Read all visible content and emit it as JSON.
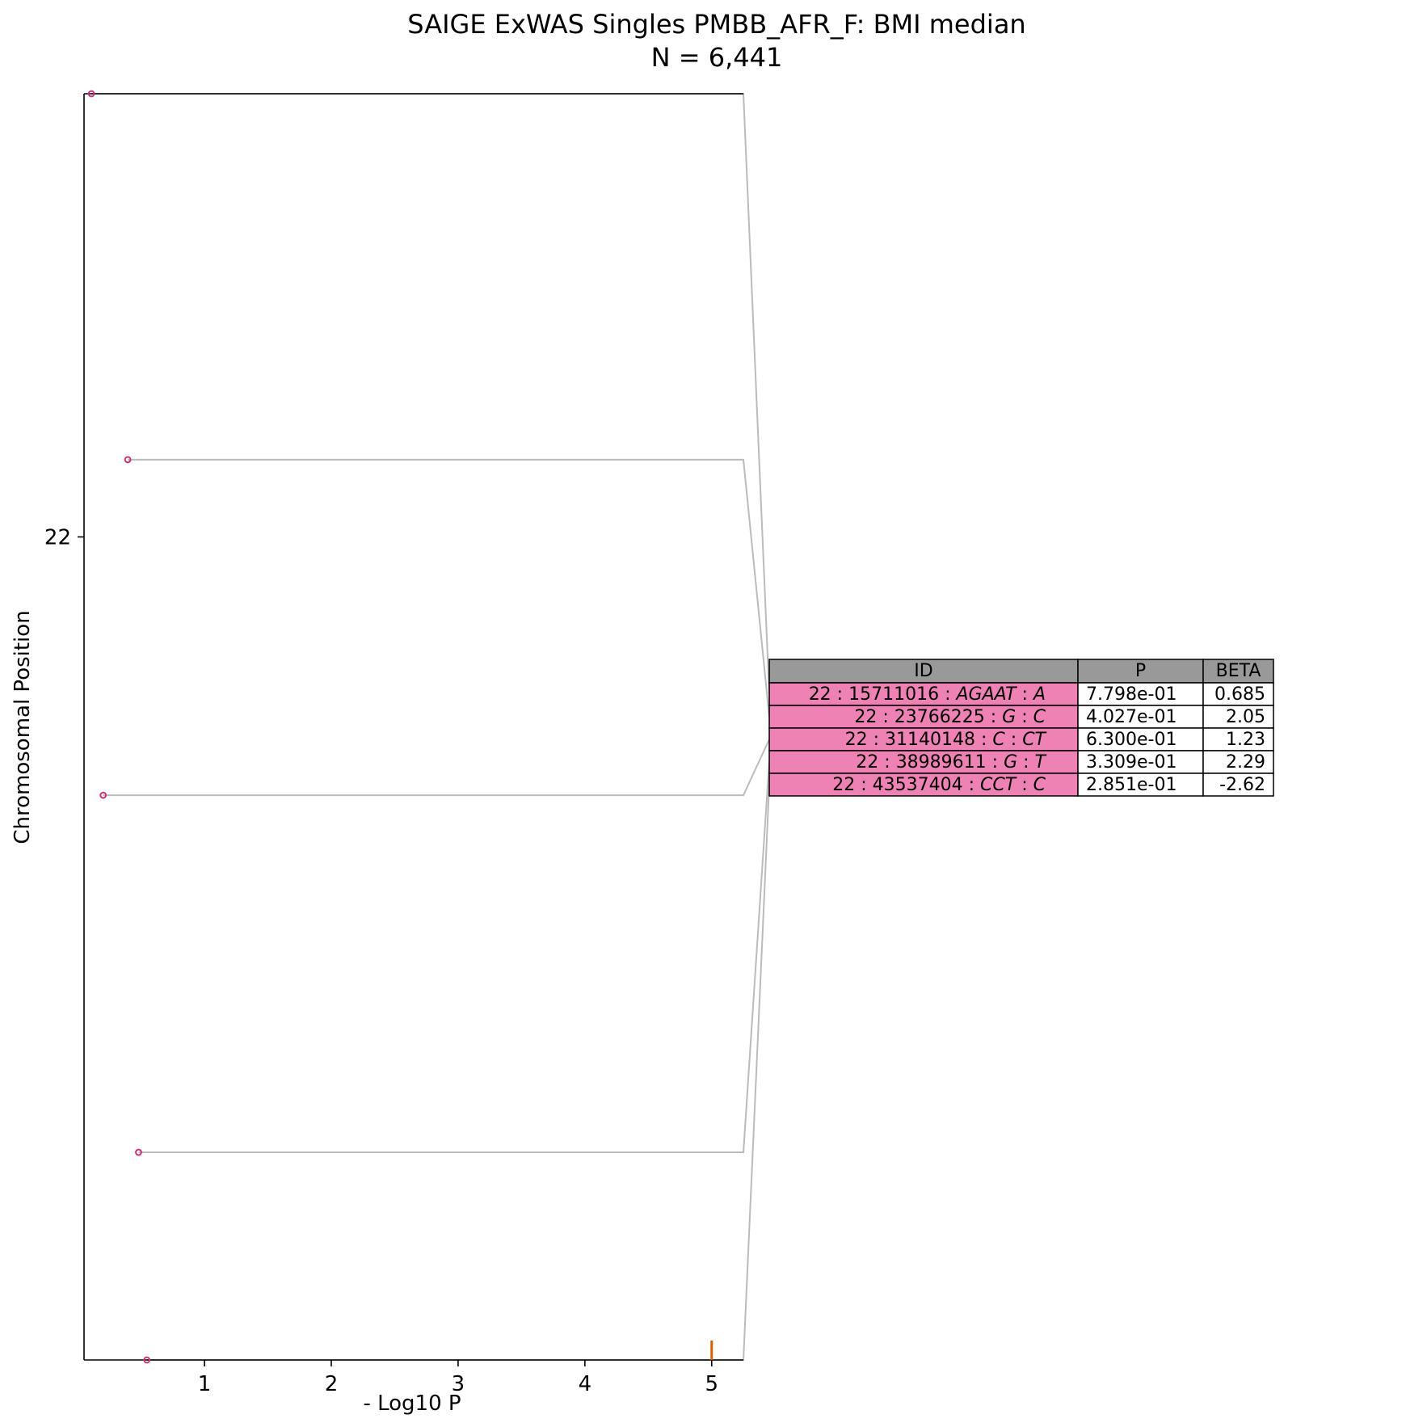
{
  "chart_data": {
    "type": "scatter",
    "title": "SAIGE ExWAS Singles PMBB_AFR_F: BMI median",
    "subtitle": "N = 6,441",
    "xlabel": "- Log10 P",
    "ylabel": "Chromosomal Position",
    "xlim": [
      0.05,
      5.25
    ],
    "x_ticks": [
      1,
      2,
      3,
      4,
      5
    ],
    "y_ticks": [
      {
        "label": "22",
        "frac": 0.35
      }
    ],
    "grid": false,
    "legend": "none",
    "threshold": {
      "value": 5.0,
      "color": "#d95f02"
    },
    "colors": {
      "point": "#cc3377",
      "connector": "#bbbbbb",
      "row_fill": "#ee82b4",
      "header_fill": "#999999",
      "axis": "#000000"
    },
    "points": [
      {
        "id": "22:15711016:AGAAT:A",
        "x": 0.108,
        "ypos": 0.0
      },
      {
        "id": "22:23766225:G:C",
        "x": 0.395,
        "ypos": 0.289
      },
      {
        "id": "22:31140148:C:CT",
        "x": 0.201,
        "ypos": 0.554
      },
      {
        "id": "22:38989611:G:T",
        "x": 0.48,
        "ypos": 0.836
      },
      {
        "id": "22:43537404:CCT:C",
        "x": 0.545,
        "ypos": 1.0
      }
    ],
    "table": {
      "columns": [
        "ID",
        "P",
        "BETA"
      ],
      "rows": [
        {
          "chrom": "22",
          "pos": "15711016",
          "ref": "AGAAT",
          "alt": "A",
          "p": "7.798e-01",
          "beta": "0.685"
        },
        {
          "chrom": "22",
          "pos": "23766225",
          "ref": "G",
          "alt": "C",
          "p": "4.027e-01",
          "beta": "2.05"
        },
        {
          "chrom": "22",
          "pos": "31140148",
          "ref": "C",
          "alt": "CT",
          "p": "6.300e-01",
          "beta": "1.23"
        },
        {
          "chrom": "22",
          "pos": "38989611",
          "ref": "G",
          "alt": "T",
          "p": "3.309e-01",
          "beta": "2.29"
        },
        {
          "chrom": "22",
          "pos": "43537404",
          "ref": "CCT",
          "alt": "C",
          "p": "2.851e-01",
          "beta": "-2.62"
        }
      ]
    }
  }
}
